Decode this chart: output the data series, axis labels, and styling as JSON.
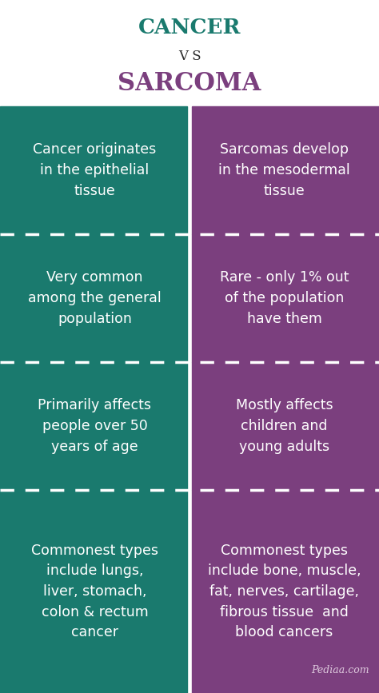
{
  "title_cancer": "CANCER",
  "title_vs": "V S",
  "title_sarcoma": "SARCOMA",
  "cancer_color": "#1a7a6e",
  "sarcoma_color": "#7b3f7e",
  "title_cancer_color": "#1a7a6e",
  "title_vs_color": "#2c2c2c",
  "title_sarcoma_color": "#7b3f7e",
  "bg_color": "#ffffff",
  "text_color": "#ffffff",
  "rows": [
    {
      "left": "Cancer originates\nin the epithelial\ntissue",
      "right": "Sarcomas develop\nin the mesodermal\ntissue"
    },
    {
      "left": "Very common\namong the general\npopulation",
      "right": "Rare - only 1% out\nof the population\nhave them"
    },
    {
      "left": "Primarily affects\npeople over 50\nyears of age",
      "right": "Mostly affects\nchildren and\nyoung adults"
    },
    {
      "left": "Commonest types\ninclude lungs,\nliver, stomach,\ncolon & rectum\ncancer",
      "right": "Commonest types\ninclude bone, muscle,\nfat, nerves, cartilage,\nfibrous tissue  and\nblood cancers"
    }
  ],
  "watermark": "Pediaa.com",
  "watermark_color": "#ddc8dd",
  "divider_color": "#ffffff",
  "font_size_cancer": 19,
  "font_size_vs": 12,
  "font_size_sarcoma": 22,
  "font_size_text": 12.5
}
